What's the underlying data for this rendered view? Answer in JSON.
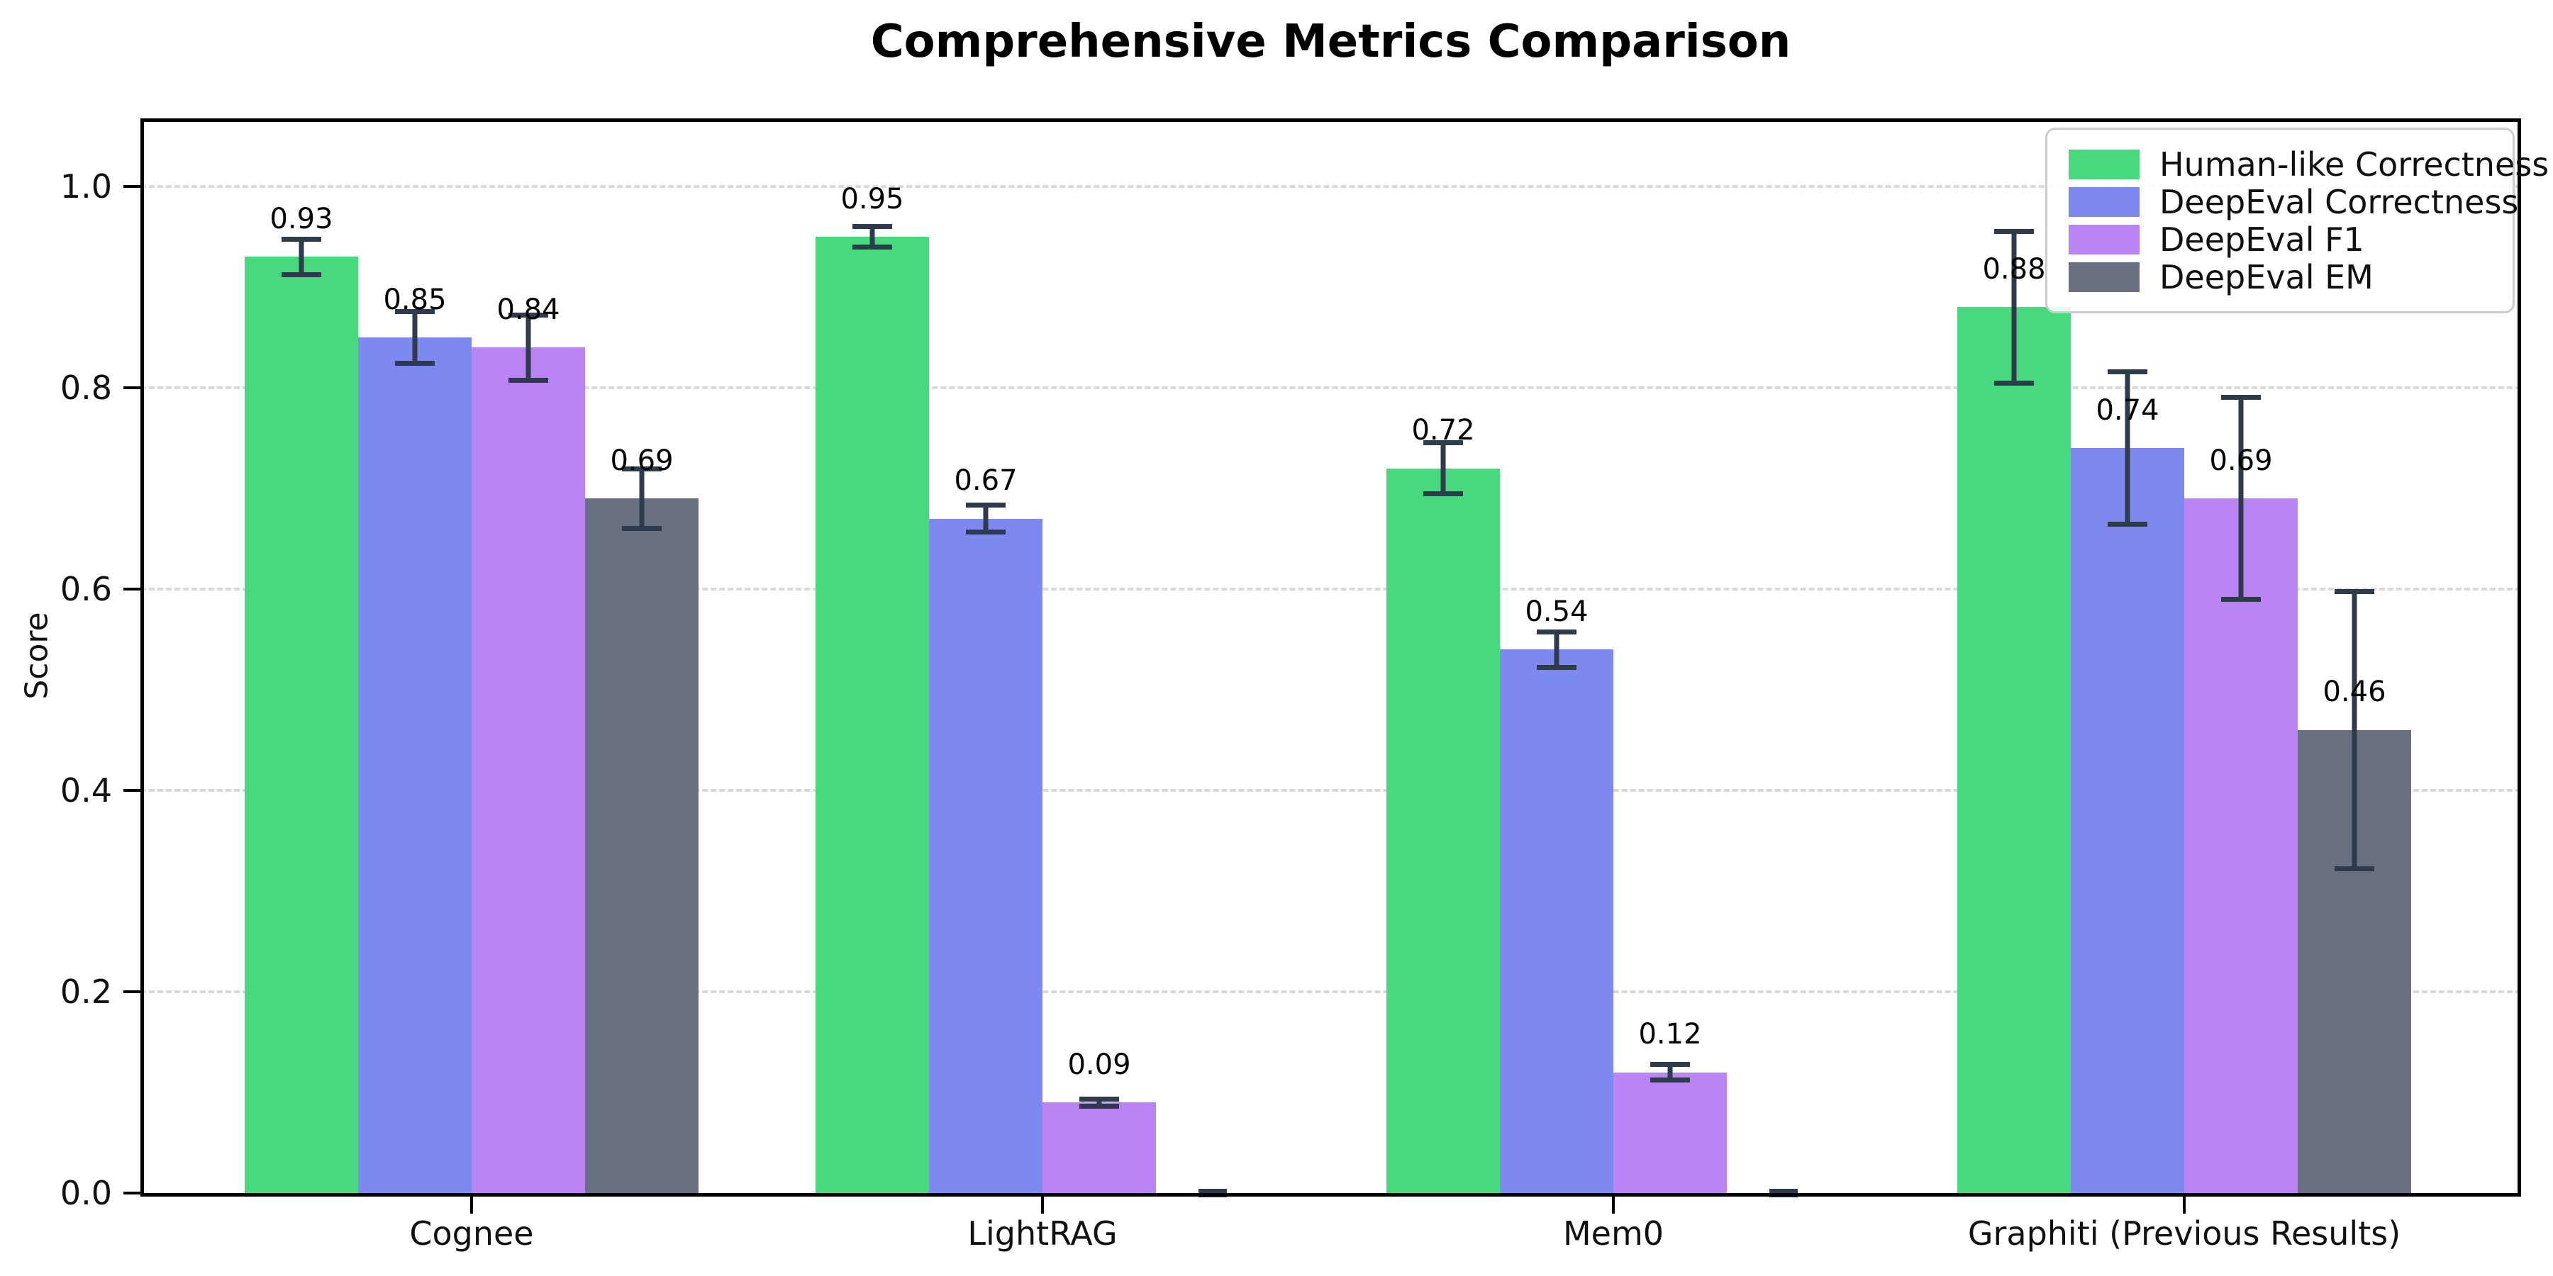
{
  "page": {
    "title": "Comprehensive Metrics Comparison"
  },
  "chart_data": {
    "type": "bar",
    "title": "Comprehensive Metrics Comparison",
    "xlabel": "",
    "ylabel": "Score",
    "ylim": [
      0,
      1.07
    ],
    "grid": "horizontal-dashed",
    "legend_position": "upper right",
    "background": "#ffffff",
    "categories": [
      "Cognee",
      "LightRAG",
      "Mem0",
      "Graphiti (Previous Results)"
    ],
    "yticks": [
      {
        "value": 0.0,
        "label": "0.0"
      },
      {
        "value": 0.2,
        "label": "0.2"
      },
      {
        "value": 0.4,
        "label": "0.4"
      },
      {
        "value": 0.6,
        "label": "0.6"
      },
      {
        "value": 0.8,
        "label": "0.8"
      },
      {
        "value": 1.0,
        "label": "1.0"
      }
    ],
    "series": [
      {
        "name": "Human-like Correctness",
        "color": "#48d97f",
        "values": [
          0.93,
          0.95,
          0.72,
          0.88
        ],
        "errors": [
          0.02,
          0.013,
          0.028,
          0.078
        ],
        "labels": [
          "0.93",
          "0.95",
          "0.72",
          "0.88"
        ]
      },
      {
        "name": "DeepEval Correctness",
        "color": "#7e89f0",
        "values": [
          0.85,
          0.67,
          0.54,
          0.74
        ],
        "errors": [
          0.028,
          0.016,
          0.02,
          0.078
        ],
        "labels": [
          "0.85",
          "0.67",
          "0.54",
          "0.74"
        ]
      },
      {
        "name": "DeepEval F1",
        "color": "#bb84f5",
        "values": [
          0.84,
          0.09,
          0.12,
          0.69
        ],
        "errors": [
          0.035,
          0.006,
          0.01,
          0.103
        ],
        "labels": [
          "0.84",
          "0.09",
          "0.12",
          "0.69"
        ]
      },
      {
        "name": "DeepEval EM",
        "color": "#697180",
        "values": [
          0.69,
          0.0,
          0.0,
          0.46
        ],
        "errors": [
          0.032,
          0.004,
          0.004,
          0.14
        ],
        "labels": [
          "0.69",
          "",
          "",
          "0.46"
        ]
      }
    ],
    "style": {
      "error_bar_color": "#2e3b4d",
      "gridline_color": "#d9d9d9",
      "axis_color": "#000000"
    }
  }
}
